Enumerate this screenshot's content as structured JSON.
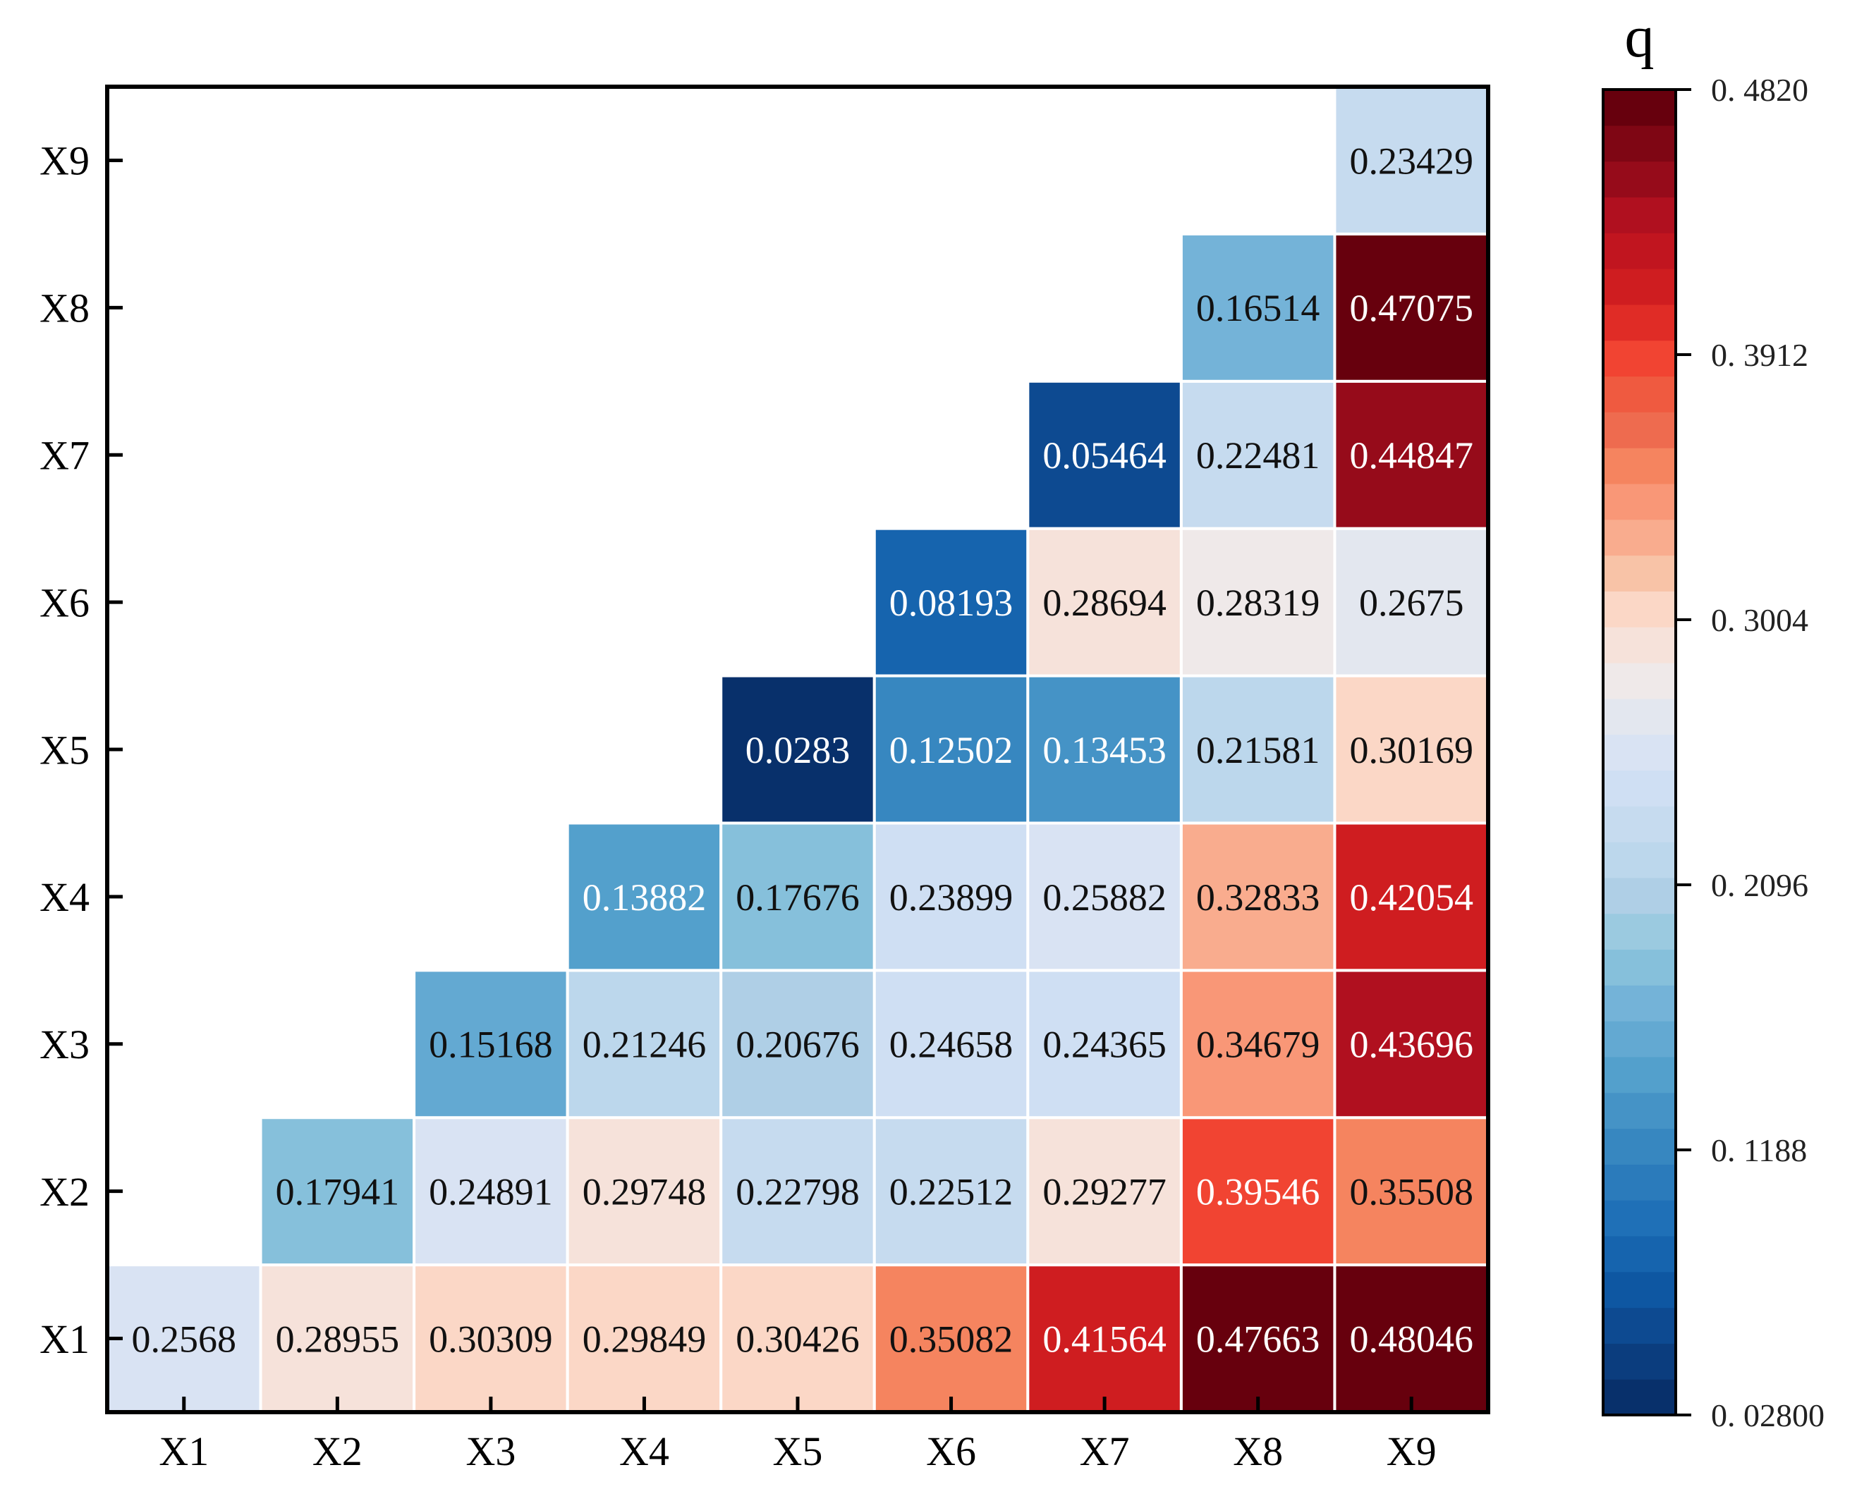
{
  "chart_data": {
    "type": "heatmap",
    "layout": "lower-triangular",
    "title": "",
    "xlabel": "",
    "ylabel": "",
    "x_categories": [
      "X1",
      "X2",
      "X3",
      "X4",
      "X5",
      "X6",
      "X7",
      "X8",
      "X9"
    ],
    "y_categories": [
      "X1",
      "X2",
      "X3",
      "X4",
      "X5",
      "X6",
      "X7",
      "X8",
      "X9"
    ],
    "cells": [
      {
        "row": "X1",
        "col": "X1",
        "value": 0.2568,
        "label": "0.2568"
      },
      {
        "row": "X1",
        "col": "X2",
        "value": 0.28955,
        "label": "0.28955"
      },
      {
        "row": "X1",
        "col": "X3",
        "value": 0.30309,
        "label": "0.30309"
      },
      {
        "row": "X1",
        "col": "X4",
        "value": 0.29849,
        "label": "0.29849"
      },
      {
        "row": "X1",
        "col": "X5",
        "value": 0.30426,
        "label": "0.30426"
      },
      {
        "row": "X1",
        "col": "X6",
        "value": 0.35082,
        "label": "0.35082"
      },
      {
        "row": "X1",
        "col": "X7",
        "value": 0.41564,
        "label": "0.41564"
      },
      {
        "row": "X1",
        "col": "X8",
        "value": 0.47663,
        "label": "0.47663"
      },
      {
        "row": "X1",
        "col": "X9",
        "value": 0.48046,
        "label": "0.48046"
      },
      {
        "row": "X2",
        "col": "X2",
        "value": 0.17941,
        "label": "0.17941"
      },
      {
        "row": "X2",
        "col": "X3",
        "value": 0.24891,
        "label": "0.24891"
      },
      {
        "row": "X2",
        "col": "X4",
        "value": 0.29748,
        "label": "0.29748"
      },
      {
        "row": "X2",
        "col": "X5",
        "value": 0.22798,
        "label": "0.22798"
      },
      {
        "row": "X2",
        "col": "X6",
        "value": 0.22512,
        "label": "0.22512"
      },
      {
        "row": "X2",
        "col": "X7",
        "value": 0.29277,
        "label": "0.29277"
      },
      {
        "row": "X2",
        "col": "X8",
        "value": 0.39546,
        "label": "0.39546"
      },
      {
        "row": "X2",
        "col": "X9",
        "value": 0.35508,
        "label": "0.35508"
      },
      {
        "row": "X3",
        "col": "X3",
        "value": 0.15168,
        "label": "0.15168"
      },
      {
        "row": "X3",
        "col": "X4",
        "value": 0.21246,
        "label": "0.21246"
      },
      {
        "row": "X3",
        "col": "X5",
        "value": 0.20676,
        "label": "0.20676"
      },
      {
        "row": "X3",
        "col": "X6",
        "value": 0.24658,
        "label": "0.24658"
      },
      {
        "row": "X3",
        "col": "X7",
        "value": 0.24365,
        "label": "0.24365"
      },
      {
        "row": "X3",
        "col": "X8",
        "value": 0.34679,
        "label": "0.34679"
      },
      {
        "row": "X3",
        "col": "X9",
        "value": 0.43696,
        "label": "0.43696"
      },
      {
        "row": "X4",
        "col": "X4",
        "value": 0.13882,
        "label": "0.13882"
      },
      {
        "row": "X4",
        "col": "X5",
        "value": 0.17676,
        "label": "0.17676"
      },
      {
        "row": "X4",
        "col": "X6",
        "value": 0.23899,
        "label": "0.23899"
      },
      {
        "row": "X4",
        "col": "X7",
        "value": 0.25882,
        "label": "0.25882"
      },
      {
        "row": "X4",
        "col": "X8",
        "value": 0.32833,
        "label": "0.32833"
      },
      {
        "row": "X4",
        "col": "X9",
        "value": 0.42054,
        "label": "0.42054"
      },
      {
        "row": "X5",
        "col": "X5",
        "value": 0.0283,
        "label": "0.0283"
      },
      {
        "row": "X5",
        "col": "X6",
        "value": 0.12502,
        "label": "0.12502"
      },
      {
        "row": "X5",
        "col": "X7",
        "value": 0.13453,
        "label": "0.13453"
      },
      {
        "row": "X5",
        "col": "X8",
        "value": 0.21581,
        "label": "0.21581"
      },
      {
        "row": "X5",
        "col": "X9",
        "value": 0.30169,
        "label": "0.30169"
      },
      {
        "row": "X6",
        "col": "X6",
        "value": 0.08193,
        "label": "0.08193"
      },
      {
        "row": "X6",
        "col": "X7",
        "value": 0.28694,
        "label": "0.28694"
      },
      {
        "row": "X6",
        "col": "X8",
        "value": 0.28319,
        "label": "0.28319"
      },
      {
        "row": "X6",
        "col": "X9",
        "value": 0.2675,
        "label": "0.2675"
      },
      {
        "row": "X7",
        "col": "X7",
        "value": 0.05464,
        "label": "0.05464"
      },
      {
        "row": "X7",
        "col": "X8",
        "value": 0.22481,
        "label": "0.22481"
      },
      {
        "row": "X7",
        "col": "X9",
        "value": 0.44847,
        "label": "0.44847"
      },
      {
        "row": "X8",
        "col": "X8",
        "value": 0.16514,
        "label": "0.16514"
      },
      {
        "row": "X8",
        "col": "X9",
        "value": 0.47075,
        "label": "0.47075"
      },
      {
        "row": "X9",
        "col": "X9",
        "value": 0.23429,
        "label": "0.23429"
      }
    ],
    "colorbar": {
      "title": "q",
      "range": [
        0.028,
        0.482
      ],
      "ticks": [
        0.028,
        0.1188,
        0.2096,
        0.3004,
        0.3912,
        0.482
      ],
      "tick_labels": [
        "0. 02800",
        "0. 1188",
        "0. 2096",
        "0. 3004",
        "0. 3912",
        "0. 4820"
      ],
      "colors_low_to_high": [
        "#08306b",
        "#0b3d7e",
        "#0d4a91",
        "#0e57a2",
        "#1664ae",
        "#1f70b7",
        "#2b7bbb",
        "#3787c0",
        "#4593c6",
        "#53a0cc",
        "#63a9d2",
        "#74b3d8",
        "#86c0db",
        "#9bcae0",
        "#afcfe6",
        "#bcd7ec",
        "#c6dbef",
        "#cfdff3",
        "#d9e3f3",
        "#e3e7ef",
        "#efe9e9",
        "#f6e2da",
        "#fbd7c6",
        "#f8c3a7",
        "#f9ac8e",
        "#f99777",
        "#f5845f",
        "#ee6b4f",
        "#ef5a40",
        "#f14432",
        "#e02c26",
        "#cf1d20",
        "#c1151f",
        "#b0101f",
        "#960b1a",
        "#7f0614",
        "#67000d"
      ]
    }
  }
}
